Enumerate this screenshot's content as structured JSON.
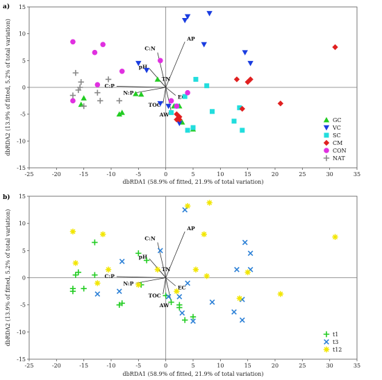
{
  "chart_data": [
    {
      "type": "scatter",
      "panel_label": "a)",
      "xlabel": "dbRDA1 (58.9% of fitted, 21.9% of total variation)",
      "ylabel": "dbRDA2 (13.9% of fitted, 5.2% of total variation)",
      "xlim": [
        -25,
        35
      ],
      "ylim": [
        -15,
        15
      ],
      "x_ticks": [
        "-25",
        "-20",
        "-15",
        "-10",
        "-5",
        "0",
        "5",
        "10",
        "15",
        "20",
        "25",
        "30",
        "35"
      ],
      "y_ticks": [
        "-15",
        "-10",
        "-5",
        "0",
        "5",
        "10",
        "15"
      ],
      "legend_position": "bottom-right",
      "vectors": [
        {
          "label": "AP",
          "x": 3.5,
          "y": 8.5
        },
        {
          "label": "C:N",
          "x": -1.5,
          "y": 6.5
        },
        {
          "label": "pH",
          "x": -3,
          "y": 3.5
        },
        {
          "label": "TN",
          "x": -1,
          "y": 1.2
        },
        {
          "label": "C:P",
          "x": -9,
          "y": 0.2
        },
        {
          "label": "N:P",
          "x": -5.5,
          "y": -1
        },
        {
          "label": "EC",
          "x": 1.8,
          "y": -1.5
        },
        {
          "label": "TOC",
          "x": -0.5,
          "y": -3
        },
        {
          "label": "AW",
          "x": 1,
          "y": -4.5
        }
      ],
      "series": [
        {
          "name": "GC",
          "marker": "triangle",
          "color": "#22cc22",
          "points": [
            [
              -15,
              -2
            ],
            [
              -15.5,
              -3.2
            ],
            [
              -8.5,
              -5
            ],
            [
              -8,
              -4.7
            ],
            [
              -5.5,
              -1.2
            ],
            [
              -4.5,
              -1.3
            ],
            [
              -1.5,
              1.5
            ],
            [
              1.5,
              -3.5
            ],
            [
              2.5,
              -3.5
            ],
            [
              3,
              -6.5
            ],
            [
              5,
              -7.8
            ]
          ]
        },
        {
          "name": "VC",
          "marker": "triangle-down",
          "color": "#1a3de0",
          "points": [
            [
              3.5,
              12.5
            ],
            [
              4,
              13.2
            ],
            [
              8,
              13.8
            ],
            [
              7,
              8
            ],
            [
              14.5,
              6.5
            ],
            [
              15.5,
              4.5
            ],
            [
              -5,
              4.5
            ],
            [
              -3.5,
              3.2
            ],
            [
              -1,
              -3
            ],
            [
              0.5,
              -3.5
            ],
            [
              2.5,
              -6.7
            ]
          ]
        },
        {
          "name": "SC",
          "marker": "square",
          "color": "#22dddd",
          "points": [
            [
              5.5,
              1.5
            ],
            [
              7.5,
              0.3
            ],
            [
              3.5,
              -1.7
            ],
            [
              2,
              -3.5
            ],
            [
              1,
              -4.7
            ],
            [
              4,
              -8
            ],
            [
              5,
              -7.5
            ],
            [
              8.5,
              -4.5
            ],
            [
              12.5,
              -6.3
            ],
            [
              13.5,
              -3.8
            ],
            [
              14,
              -8
            ]
          ]
        },
        {
          "name": "CM",
          "marker": "diamond",
          "color": "#e02020",
          "points": [
            [
              13,
              1.5
            ],
            [
              15,
              1
            ],
            [
              15.5,
              1.5
            ],
            [
              14,
              -4
            ],
            [
              21,
              -3
            ],
            [
              31,
              7.5
            ],
            [
              2,
              -5
            ],
            [
              2.5,
              -5.5
            ],
            [
              2.5,
              -6
            ],
            [
              2,
              -6
            ]
          ]
        },
        {
          "name": "CON",
          "marker": "circle",
          "color": "#e030e0",
          "points": [
            [
              -17,
              8.5
            ],
            [
              -13,
              6.5
            ],
            [
              -11.5,
              8
            ],
            [
              -8,
              3
            ],
            [
              -1,
              5
            ],
            [
              -12.5,
              0.5
            ],
            [
              -17,
              -2.5
            ],
            [
              1,
              -2.5
            ],
            [
              2,
              -3.5
            ],
            [
              4,
              -1
            ]
          ]
        },
        {
          "name": "NAT",
          "marker": "plus",
          "color": "#888888",
          "points": [
            [
              -16.5,
              2.7
            ],
            [
              -16,
              -0.5
            ],
            [
              -15.5,
              1
            ],
            [
              -15,
              -3.5
            ],
            [
              -12.5,
              -1
            ],
            [
              -12,
              -2.5
            ],
            [
              -10.5,
              1.5
            ],
            [
              -8.5,
              -2.5
            ],
            [
              -15.7,
              0
            ],
            [
              -17,
              -1.5
            ]
          ]
        }
      ]
    },
    {
      "type": "scatter",
      "panel_label": "b)",
      "xlabel": "dbRDA1 (58.9% of fitted, 21.9% of total variation)",
      "ylabel": "dbRDA2 (13.9% of fitted, 5.2% of total variation)",
      "xlim": [
        -25,
        35
      ],
      "ylim": [
        -15,
        15
      ],
      "x_ticks": [
        "-25",
        "-20",
        "-15",
        "-10",
        "-5",
        "0",
        "5",
        "10",
        "15",
        "20",
        "25",
        "30",
        "35"
      ],
      "y_ticks": [
        "-15",
        "-10",
        "-5",
        "0",
        "5",
        "10",
        "15"
      ],
      "legend_position": "bottom-right",
      "vectors": [
        {
          "label": "AP",
          "x": 3.5,
          "y": 8.5
        },
        {
          "label": "C:N",
          "x": -1.5,
          "y": 6.5
        },
        {
          "label": "pH",
          "x": -3,
          "y": 3.5
        },
        {
          "label": "TN",
          "x": -1,
          "y": 1.2
        },
        {
          "label": "C:P",
          "x": -9,
          "y": 0.2
        },
        {
          "label": "N:P",
          "x": -5.5,
          "y": -1
        },
        {
          "label": "EC",
          "x": 1.8,
          "y": -1.5
        },
        {
          "label": "TOC",
          "x": -0.5,
          "y": -3
        },
        {
          "label": "AW",
          "x": 1,
          "y": -4.5
        }
      ],
      "series": [
        {
          "name": "t1",
          "marker": "plus",
          "color": "#22cc22",
          "points": [
            [
              -13,
              6.5
            ],
            [
              -5,
              4.5
            ],
            [
              -3.5,
              3.2
            ],
            [
              -16.5,
              0.5
            ],
            [
              -16,
              1
            ],
            [
              -13,
              0.5
            ],
            [
              -17,
              -2
            ],
            [
              -17,
              -2.5
            ],
            [
              -15,
              -2
            ],
            [
              -8.5,
              -5
            ],
            [
              -8,
              -4.7
            ],
            [
              -4.5,
              -1.3
            ],
            [
              0,
              -3.3
            ],
            [
              1,
              -4.5
            ],
            [
              2.5,
              -5
            ],
            [
              2.5,
              -5.5
            ],
            [
              3.5,
              -7.8
            ],
            [
              5,
              -7.2
            ]
          ]
        },
        {
          "name": "t3",
          "marker": "x",
          "color": "#2a7fd6",
          "points": [
            [
              3.5,
              12.5
            ],
            [
              14.5,
              6.5
            ],
            [
              15.5,
              4.5
            ],
            [
              15.5,
              1.5
            ],
            [
              13,
              1.5
            ],
            [
              -1,
              5
            ],
            [
              -8,
              3
            ],
            [
              -8.5,
              -2.5
            ],
            [
              -12.5,
              -3
            ],
            [
              0.5,
              -3.5
            ],
            [
              4,
              -1
            ],
            [
              2.5,
              -3.5
            ],
            [
              3,
              -6.5
            ],
            [
              5,
              -8
            ],
            [
              8.5,
              -4.5
            ],
            [
              12.5,
              -6.3
            ],
            [
              14,
              -4
            ],
            [
              14,
              -7.8
            ]
          ]
        },
        {
          "name": "t12",
          "marker": "asterisk",
          "color": "#f2e600",
          "points": [
            [
              -17,
              8.5
            ],
            [
              -11.5,
              8
            ],
            [
              4,
              13.2
            ],
            [
              8,
              13.8
            ],
            [
              7,
              8
            ],
            [
              31,
              7.5
            ],
            [
              -16.5,
              2.7
            ],
            [
              -10.5,
              1.5
            ],
            [
              -12.5,
              -1
            ],
            [
              -5,
              -1.3
            ],
            [
              -1.5,
              1.5
            ],
            [
              5.5,
              1.5
            ],
            [
              7.5,
              0.3
            ],
            [
              15,
              1
            ],
            [
              2,
              -2.5
            ],
            [
              13.5,
              -3.8
            ],
            [
              21,
              -3
            ]
          ]
        }
      ]
    }
  ]
}
